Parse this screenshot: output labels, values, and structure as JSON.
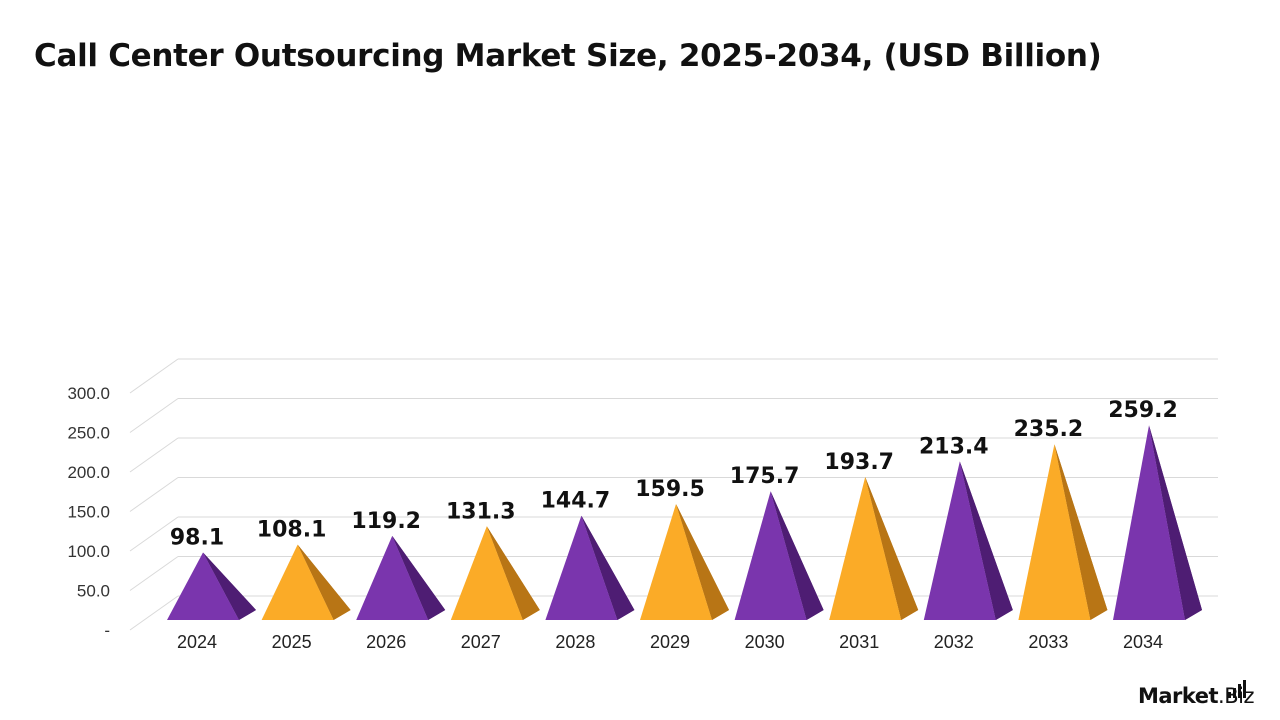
{
  "title": "Call Center Outsourcing Market Size, 2025-2034, (USD Billion)",
  "brand": {
    "name_part1": "Market",
    "name_part2": ".Biz"
  },
  "colors": {
    "purple": "#7a35ad",
    "purple_dark": "#4e1d73",
    "orange": "#fbab27",
    "orange_dark": "#b87515",
    "grid": "#d9d9d9"
  },
  "chart_data": {
    "type": "bar",
    "bar_shape": "3d-pyramid",
    "categories": [
      "2024",
      "2025",
      "2026",
      "2027",
      "2028",
      "2029",
      "2030",
      "2031",
      "2032",
      "2033",
      "2034"
    ],
    "values": [
      98.1,
      108.1,
      119.2,
      131.3,
      144.7,
      159.5,
      175.7,
      193.7,
      213.4,
      235.2,
      259.2
    ],
    "value_labels": [
      "98.1",
      "108.1",
      "119.2",
      "131.3",
      "144.7",
      "159.5",
      "175.7",
      "193.7",
      "213.4",
      "235.2",
      "259.2"
    ],
    "bar_colors": [
      "purple",
      "orange",
      "purple",
      "orange",
      "purple",
      "orange",
      "purple",
      "orange",
      "purple",
      "orange",
      "purple"
    ],
    "ylim": [
      0,
      300
    ],
    "yticks": [
      0,
      50,
      100,
      150,
      200,
      250,
      300
    ],
    "ytick_labels": [
      "-",
      "50.0",
      "100.0",
      "150.0",
      "200.0",
      "250.0",
      "300.0"
    ],
    "grid": true,
    "xlabel": "",
    "ylabel": ""
  }
}
